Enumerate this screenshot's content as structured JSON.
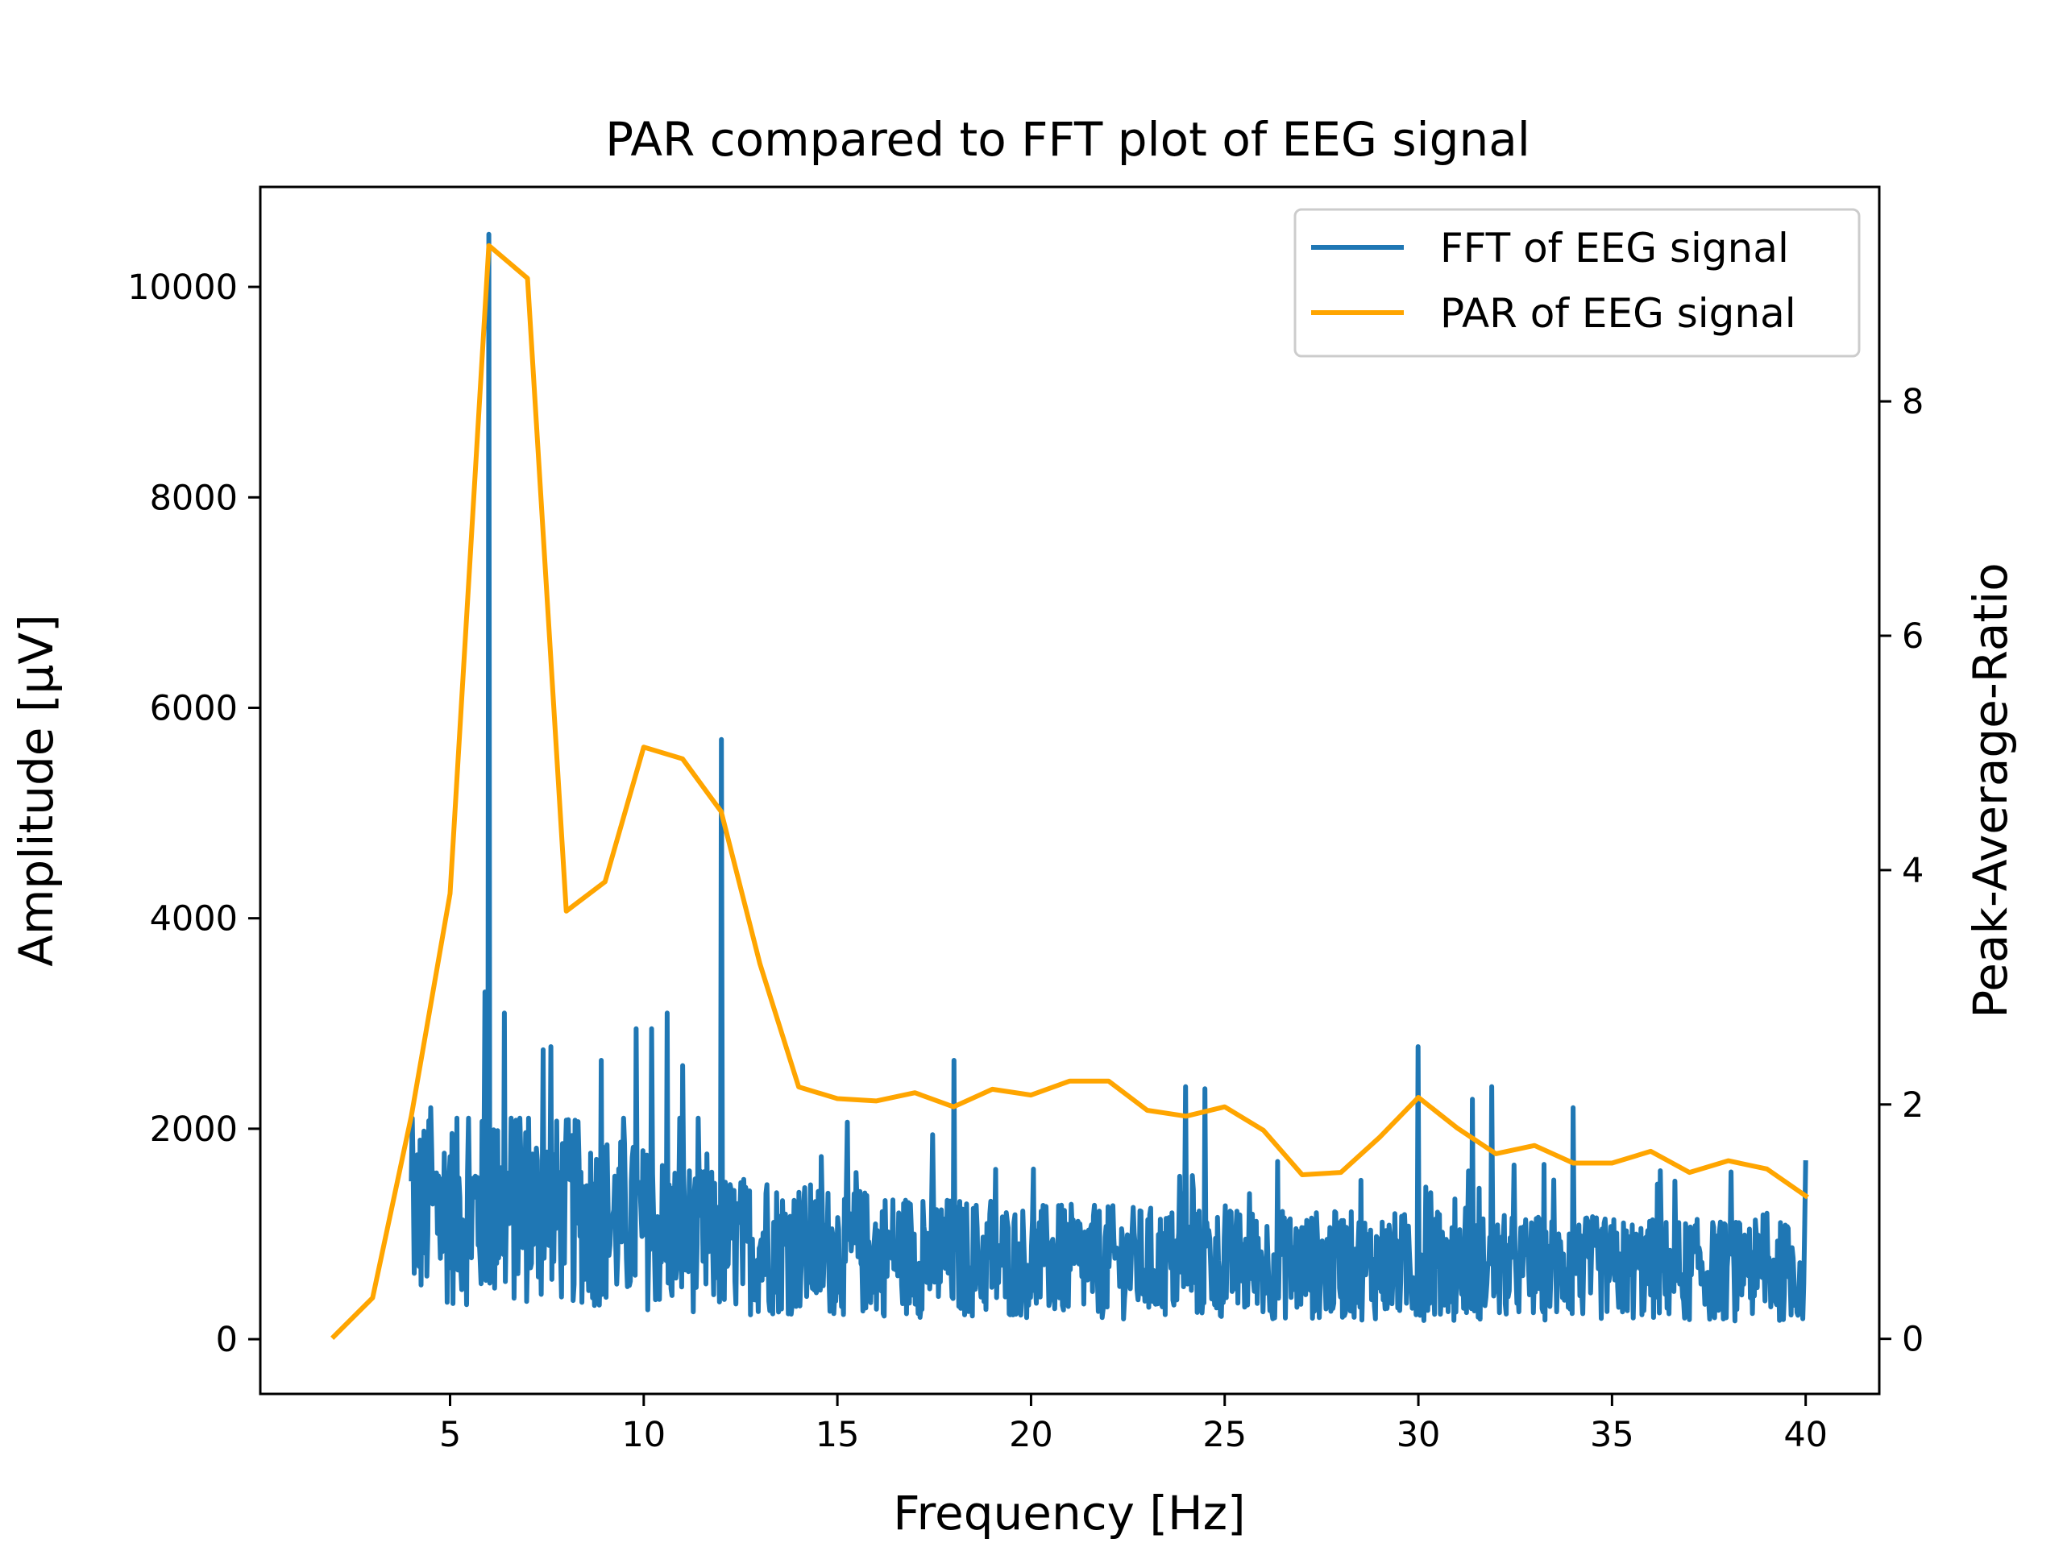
{
  "chart_data": {
    "type": "line",
    "title": "PAR compared to FFT plot of EEG signal",
    "xlabel": "Frequency [Hz]",
    "ylabel": "Amplitude [μV]",
    "ylabel_right": "Peak-Average-Ratio",
    "xlim": [
      0.1,
      41.9
    ],
    "ylim": [
      -520,
      10950
    ],
    "ylim_right": [
      -0.47,
      9.83
    ],
    "xticks": [
      5,
      10,
      15,
      20,
      25,
      30,
      35,
      40
    ],
    "yticks": [
      0,
      2000,
      4000,
      6000,
      8000,
      10000
    ],
    "yticks_right": [
      0,
      2,
      4,
      6,
      8
    ],
    "grid": false,
    "legend_position": "upper right",
    "series": [
      {
        "name": "FFT of EEG signal",
        "axis": "left",
        "color": "#1f77b4",
        "style": "noisy-spectrum",
        "x_range": [
          4,
          40
        ],
        "sample_count": 1440,
        "peaks": [
          {
            "x": 6.0,
            "y": 10500
          },
          {
            "x": 12.0,
            "y": 5700
          },
          {
            "x": 5.9,
            "y": 3300
          },
          {
            "x": 6.4,
            "y": 3100
          },
          {
            "x": 10.6,
            "y": 3100
          },
          {
            "x": 10.2,
            "y": 2950
          },
          {
            "x": 9.8,
            "y": 2950
          },
          {
            "x": 30.0,
            "y": 2780
          },
          {
            "x": 7.6,
            "y": 2780
          },
          {
            "x": 7.4,
            "y": 2750
          },
          {
            "x": 18.0,
            "y": 2650
          },
          {
            "x": 8.9,
            "y": 2650
          },
          {
            "x": 11.0,
            "y": 2600
          },
          {
            "x": 24.0,
            "y": 2400
          },
          {
            "x": 24.5,
            "y": 2380
          },
          {
            "x": 31.9,
            "y": 2400
          },
          {
            "x": 31.4,
            "y": 2280
          },
          {
            "x": 34.0,
            "y": 2200
          },
          {
            "x": 4.5,
            "y": 2200
          },
          {
            "x": 40.0,
            "y": 1700
          }
        ]
      },
      {
        "name": "PAR of EEG signal",
        "axis": "right",
        "color": "#ffa500",
        "x": [
          2,
          3,
          4,
          5,
          6,
          7,
          8,
          9,
          10,
          11,
          12,
          13,
          14,
          15,
          16,
          17,
          18,
          19,
          20,
          21,
          22,
          23,
          24,
          25,
          26,
          27,
          28,
          29,
          30,
          31,
          32,
          33,
          34,
          35,
          36,
          37,
          38,
          39,
          40
        ],
        "y": [
          0.02,
          0.35,
          1.9,
          3.8,
          9.33,
          9.05,
          3.65,
          3.9,
          5.05,
          4.95,
          4.5,
          3.2,
          2.15,
          2.05,
          2.03,
          2.1,
          1.98,
          2.13,
          2.08,
          2.2,
          2.2,
          1.95,
          1.9,
          1.98,
          1.78,
          1.4,
          1.42,
          1.72,
          2.06,
          1.8,
          1.58,
          1.65,
          1.5,
          1.5,
          1.6,
          1.42,
          1.52,
          1.45,
          1.22
        ]
      }
    ]
  }
}
